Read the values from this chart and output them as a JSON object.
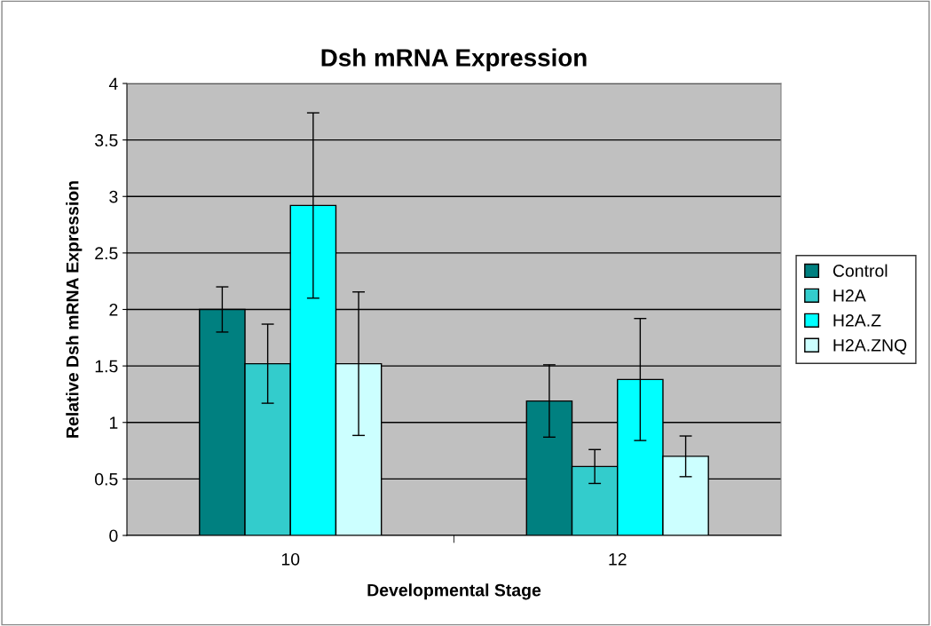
{
  "chart_data": {
    "type": "bar",
    "title": "Dsh mRNA Expression",
    "xlabel": "Developmental Stage",
    "ylabel": "Relative Dsh mRNA Expression",
    "categories": [
      "10",
      "12"
    ],
    "series": [
      {
        "name": "Control",
        "color": "#008080",
        "values": [
          2.0,
          1.19
        ],
        "errors": [
          0.2,
          0.32
        ]
      },
      {
        "name": "H2A",
        "color": "#33cccc",
        "values": [
          1.52,
          0.61
        ],
        "errors": [
          0.35,
          0.15
        ]
      },
      {
        "name": "H2A.Z",
        "color": "#00ffff",
        "values": [
          2.92,
          1.38
        ],
        "errors": [
          0.82,
          0.54
        ]
      },
      {
        "name": "H2A.ZNQ",
        "color": "#ccffff",
        "values": [
          1.52,
          0.7
        ],
        "errors": [
          0.635,
          0.18
        ]
      }
    ],
    "ylim": [
      0,
      4
    ],
    "yticks": [
      0,
      0.5,
      1,
      1.5,
      2,
      2.5,
      3,
      3.5,
      4
    ],
    "grid": "y",
    "legend": "right"
  }
}
